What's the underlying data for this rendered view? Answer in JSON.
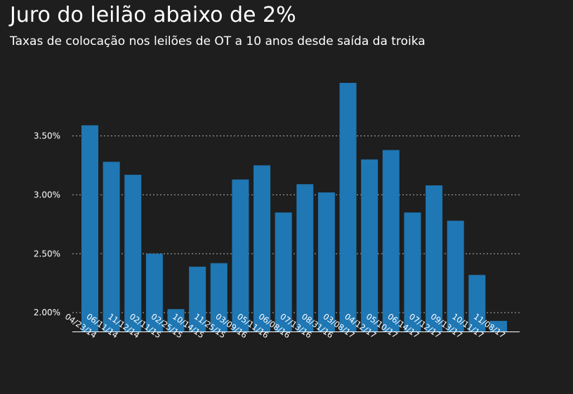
{
  "header": {
    "title": "Juro do leilão abaixo de 2%",
    "subtitle": "Taxas de colocação nos leilões de OT a 10 anos desde saída da troika"
  },
  "chart_data": {
    "type": "bar",
    "categories": [
      "04/23/14",
      "06/11/14",
      "11/12/14",
      "02/11/15",
      "02/25/15",
      "10/14/15",
      "11/25/15",
      "03/09/16",
      "05/11/16",
      "06/08/16",
      "07/13/16",
      "08/31/16",
      "03/08/17",
      "04/12/17",
      "05/10/17",
      "06/14/17",
      "07/12/17",
      "09/13/17",
      "10/11/17",
      "11/08/17"
    ],
    "values": [
      3.59,
      3.28,
      3.17,
      2.5,
      2.03,
      2.39,
      2.42,
      3.13,
      3.25,
      2.85,
      3.09,
      3.02,
      3.95,
      3.3,
      3.38,
      2.85,
      3.08,
      2.78,
      2.32,
      1.93
    ],
    "ylim": [
      1.84,
      3.95
    ],
    "yticks": [
      2.0,
      2.5,
      3.0,
      3.5
    ],
    "ytick_labels": [
      "2.00%",
      "2.50%",
      "3.00%",
      "3.50%"
    ],
    "grid": true,
    "colors": {
      "bar": "#1f77b4",
      "grid": "#b0b0b0",
      "axis": "#ffffff"
    }
  }
}
